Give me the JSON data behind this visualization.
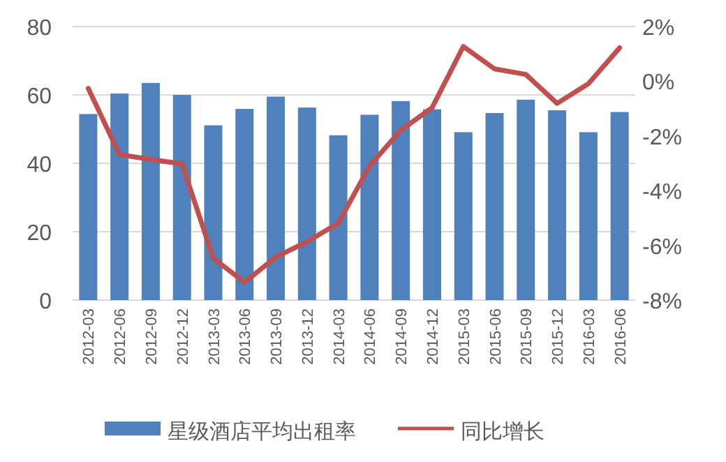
{
  "chart_data": {
    "type": "bar",
    "categories": [
      "2012-03",
      "2012-06",
      "2012-09",
      "2012-12",
      "2013-03",
      "2013-06",
      "2013-09",
      "2013-12",
      "2014-03",
      "2014-06",
      "2014-09",
      "2014-12",
      "2015-03",
      "2015-06",
      "2015-09",
      "2015-12",
      "2016-03",
      "2016-06"
    ],
    "series": [
      {
        "name": "星级酒店平均出租率",
        "color": "#4f81bd",
        "values": [
          54.4,
          60.4,
          63.5,
          60,
          51.1,
          55.9,
          59.5,
          56.3,
          48.2,
          54.2,
          58.2,
          55.8,
          49.1,
          54.7,
          58.6,
          55.5,
          49.1,
          55
        ]
      },
      {
        "name": "同比增长",
        "type": "line",
        "axis": "y2",
        "color": "#c0504d",
        "values": [
          -0.26,
          -2.68,
          -2.86,
          -3.02,
          -6.47,
          -7.35,
          -6.43,
          -5.87,
          -5.19,
          -3.1,
          -1.79,
          -0.97,
          1.27,
          0.45,
          0.25,
          -0.81,
          -0.09,
          1.22
        ]
      }
    ],
    "ylim": [
      0,
      80
    ],
    "yticks": [
      0,
      20,
      40,
      60,
      80
    ],
    "y2lim": [
      -8,
      2
    ],
    "y2ticks": [
      {
        "value": -8,
        "label": "-8%"
      },
      {
        "value": -6,
        "label": "-6%"
      },
      {
        "value": -4,
        "label": "-4%"
      },
      {
        "value": -2,
        "label": "-2%"
      },
      {
        "value": 0,
        "label": "0%"
      },
      {
        "value": 2,
        "label": "2%"
      }
    ],
    "grid": "y",
    "legend": "bottom",
    "marker": "none",
    "line_style": "solid"
  }
}
